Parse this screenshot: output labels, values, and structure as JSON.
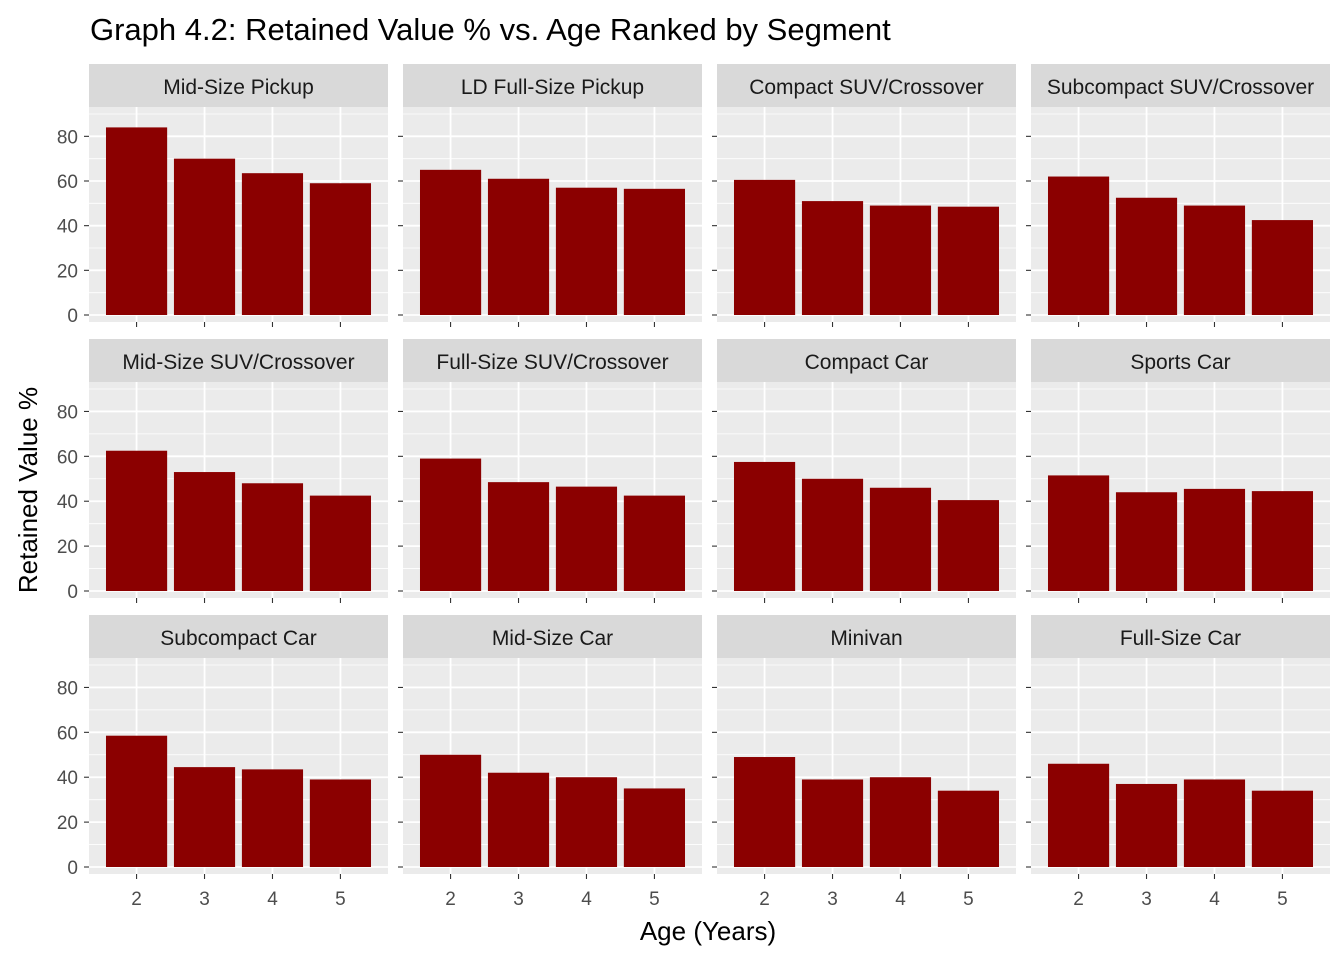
{
  "chart_data": {
    "type": "bar",
    "title": "Graph 4.2: Retained Value % vs. Age Ranked by Segment",
    "xlabel": "Age (Years)",
    "ylabel": "Retained Value %",
    "categories": [
      "2",
      "3",
      "4",
      "5"
    ],
    "ylim": [
      0,
      90
    ],
    "yticks": [
      "0",
      "20",
      "40",
      "60",
      "80"
    ],
    "grid": true,
    "bar_color": "#8B0000",
    "panel_background": "#EBEBEB",
    "strip_background": "#D9D9D9",
    "facets": [
      {
        "name": "Mid-Size Pickup",
        "values": [
          84,
          70,
          63.5,
          59
        ]
      },
      {
        "name": "LD Full-Size Pickup",
        "values": [
          65,
          61,
          57,
          56.5
        ]
      },
      {
        "name": "Compact SUV/Crossover",
        "values": [
          60.5,
          51,
          49,
          48.5
        ]
      },
      {
        "name": "Subcompact SUV/Crossover",
        "values": [
          62,
          52.5,
          49,
          42.5
        ]
      },
      {
        "name": "Mid-Size SUV/Crossover",
        "values": [
          62.5,
          53,
          48,
          42.5
        ]
      },
      {
        "name": "Full-Size SUV/Crossover",
        "values": [
          59,
          48.5,
          46.5,
          42.5
        ]
      },
      {
        "name": "Compact Car",
        "values": [
          57.5,
          50,
          46,
          40.5
        ]
      },
      {
        "name": "Sports Car",
        "values": [
          51.5,
          44,
          45.5,
          44.5
        ]
      },
      {
        "name": "Subcompact Car",
        "values": [
          58.5,
          44.5,
          43.5,
          39
        ]
      },
      {
        "name": "Mid-Size Car",
        "values": [
          50,
          42,
          40,
          35
        ]
      },
      {
        "name": "Minivan",
        "values": [
          49,
          39,
          40,
          34
        ]
      },
      {
        "name": "Full-Size Car",
        "values": [
          46,
          37,
          39,
          34
        ]
      }
    ]
  }
}
